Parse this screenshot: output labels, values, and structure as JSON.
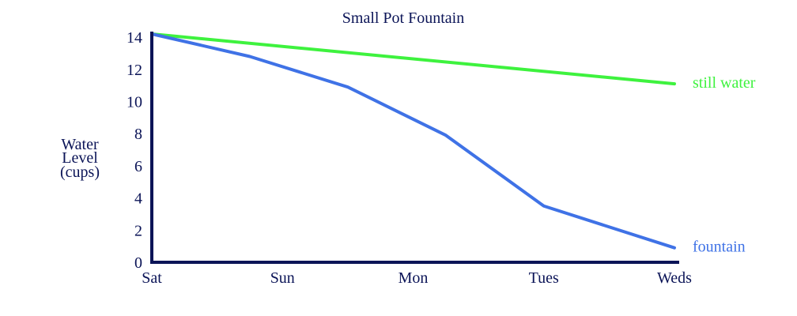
{
  "chart_data": {
    "type": "line",
    "title": "Small Pot Fountain",
    "ylabel_lines": [
      "Water",
      "Level",
      "(cups)"
    ],
    "categories": [
      "Sat",
      "Sun",
      "Mon",
      "Tues",
      "Weds"
    ],
    "x": [
      0,
      1,
      2,
      3,
      4
    ],
    "ylim": [
      0,
      14
    ],
    "yticks": [
      0,
      2,
      4,
      6,
      8,
      10,
      12,
      14
    ],
    "series": [
      {
        "name": "still water",
        "color": "#3ef23e",
        "x": [
          0,
          4
        ],
        "values": [
          14.2,
          11.1
        ]
      },
      {
        "name": "fountain",
        "color": "#3f72e6",
        "x": [
          0,
          0.75,
          1.5,
          2.25,
          3,
          4
        ],
        "values": [
          14.2,
          12.8,
          10.9,
          7.9,
          3.5,
          0.9
        ]
      }
    ],
    "grid": false,
    "legend": "direct labels at line ends"
  }
}
